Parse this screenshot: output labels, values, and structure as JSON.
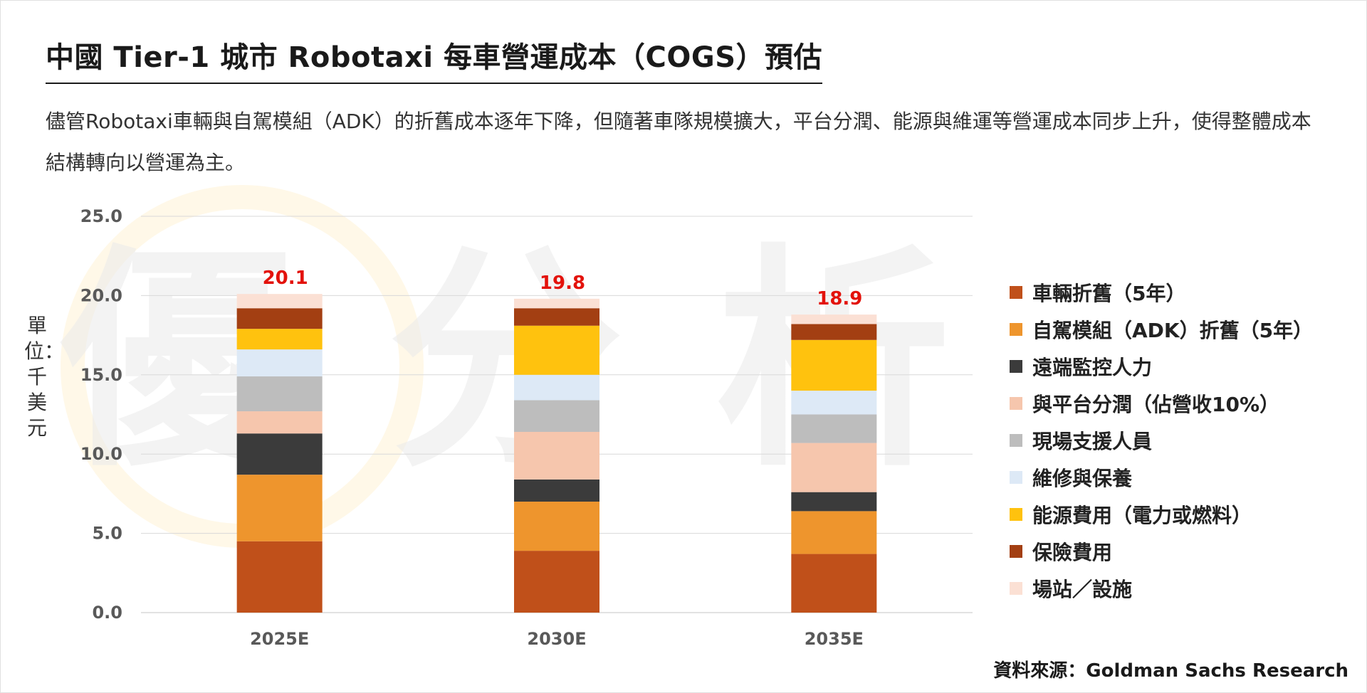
{
  "header": {
    "title": "中國 Tier-1 城市 Robotaxi 每車營運成本（COGS）預估",
    "subtitle": "儘管Robotaxi車輛與自駕模組（ADK）的折舊成本逐年下降，但隨著車隊規模擴大，平台分潤、能源與維運等營運成本同步上升，使得整體成本結構轉向以營運為主。"
  },
  "watermark": {
    "text": "優分析"
  },
  "source": "資料來源：Goldman Sachs Research",
  "colors": {
    "total_label": "#e3120b",
    "grid": "#d9d9d9",
    "axis_text": "#595959"
  },
  "chart_data": {
    "type": "bar",
    "stacked": true,
    "title": "中國 Tier-1 城市 Robotaxi 每車營運成本（COGS）預估",
    "ylabel": "單位：千美元",
    "xlabel": "",
    "ylim": [
      0,
      25
    ],
    "yticks": [
      "0.0",
      "5.0",
      "10.0",
      "15.0",
      "20.0",
      "25.0"
    ],
    "grid": true,
    "legend_position": "right",
    "categories": [
      "2025E",
      "2030E",
      "2035E"
    ],
    "totals": [
      {
        "label": "20.1",
        "value": 20.1
      },
      {
        "label": "19.8",
        "value": 19.8
      },
      {
        "label": "18.9",
        "value": 18.9
      }
    ],
    "series": [
      {
        "name": "車輛折舊（5年）",
        "color": "#c0501a",
        "values": [
          4.5,
          3.9,
          3.7
        ]
      },
      {
        "name": "自駕模組（ADK）折舊（5年）",
        "color": "#ee952d",
        "values": [
          4.2,
          3.1,
          2.7
        ]
      },
      {
        "name": "遠端監控人力",
        "color": "#3b3b3b",
        "values": [
          2.6,
          1.4,
          1.2
        ]
      },
      {
        "name": "與平台分潤（佔營收10%）",
        "color": "#f6c6ad",
        "values": [
          1.4,
          3.0,
          3.1
        ]
      },
      {
        "name": "現場支援人員",
        "color": "#bdbdbd",
        "values": [
          2.2,
          2.0,
          1.8
        ]
      },
      {
        "name": "維修與保養",
        "color": "#dde9f6",
        "values": [
          1.7,
          1.6,
          1.5
        ]
      },
      {
        "name": "能源費用（電力或燃料）",
        "color": "#ffc20e",
        "values": [
          1.3,
          3.1,
          3.2
        ]
      },
      {
        "name": "保險費用",
        "color": "#a33f12",
        "values": [
          1.3,
          1.1,
          1.0
        ]
      },
      {
        "name": "場站／設施",
        "color": "#fbe0d4",
        "values": [
          0.9,
          0.6,
          0.6
        ]
      }
    ]
  }
}
